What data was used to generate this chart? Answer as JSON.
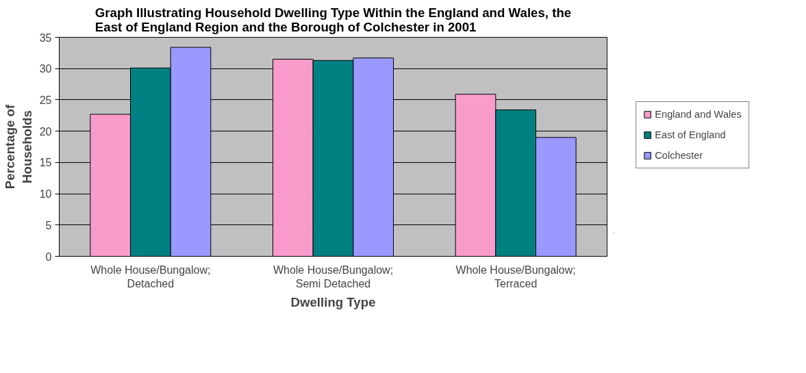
{
  "chart_data": {
    "type": "bar",
    "title": "Graph Illustrating Household Dwelling Type Within the England and Wales, the East of England Region and the Borough of Colchester in 2001",
    "xlabel": "Dwelling Type",
    "ylabel": "Percentage of Households",
    "categories": [
      "Whole House/Bungalow; Detached",
      "Whole House/Bungalow; Semi Detached",
      "Whole House/Bungalow; Terraced"
    ],
    "series": [
      {
        "name": "England and Wales",
        "color": "#f99ccc",
        "values": [
          22.7,
          31.5,
          25.9
        ]
      },
      {
        "name": "East of England",
        "color": "#008080",
        "values": [
          30.1,
          31.3,
          23.4
        ]
      },
      {
        "name": "Colchester",
        "color": "#9999ff",
        "values": [
          33.4,
          31.7,
          19.0
        ]
      }
    ],
    "ylim": [
      0,
      35
    ],
    "yticks": [
      0,
      5,
      10,
      15,
      20,
      25,
      30,
      35
    ],
    "grid": "y",
    "legend": "right"
  }
}
